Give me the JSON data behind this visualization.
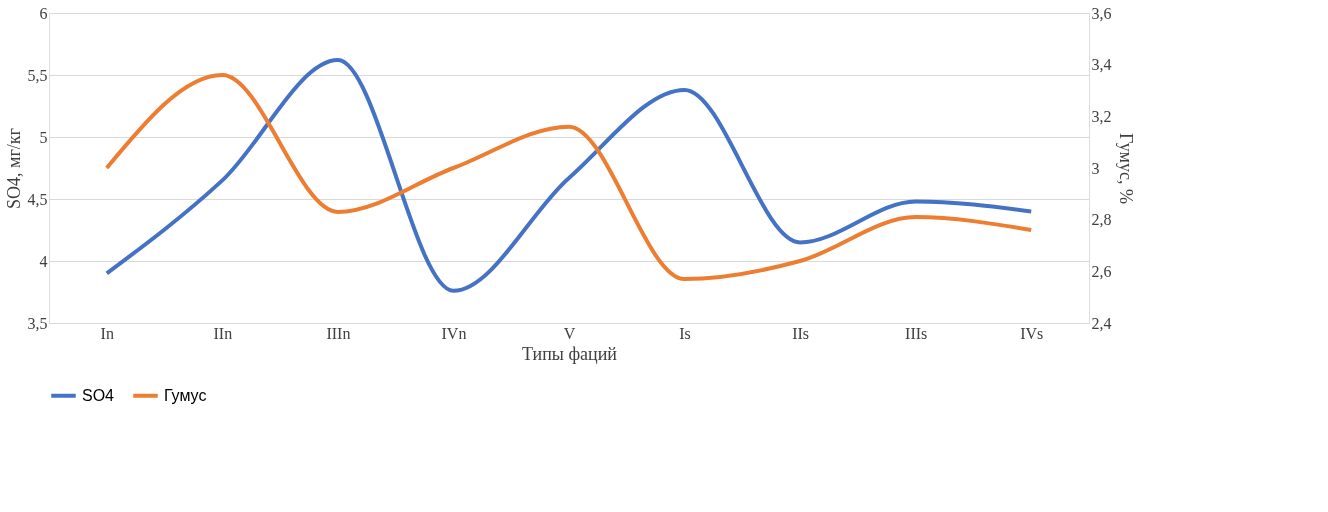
{
  "chart_data": {
    "type": "line",
    "xlabel": "Типы фаций",
    "ylabel": "SO4, мг/кг",
    "y2label": "Гумус, %",
    "categories": [
      "In",
      "IIn",
      "IIIn",
      "IVn",
      "V",
      "Is",
      "IIs",
      "IIIs",
      "IVs"
    ],
    "series": [
      {
        "name": "SO4",
        "color": "#4472c4",
        "values": [
          3.9,
          4.65,
          5.62,
          3.76,
          4.67,
          5.38,
          4.15,
          4.48,
          4.4
        ]
      },
      {
        "name": "Гумус",
        "color": "#ed7d31",
        "axis": "y2",
        "values": [
          3.0,
          3.36,
          2.83,
          3.0,
          3.16,
          2.57,
          2.64,
          2.81,
          2.76
        ]
      }
    ],
    "ylim": [
      3.5,
      6
    ],
    "yticks": [
      {
        "value": 3.5,
        "label": "3,5"
      },
      4,
      {
        "value": 4.5,
        "label": "4,5"
      },
      5,
      {
        "value": 5.5,
        "label": "5,5"
      },
      6
    ],
    "y2lim": [
      2.4,
      3.6
    ],
    "y2ticks": [
      {
        "value": 2.4,
        "label": "2,4"
      },
      {
        "value": 2.6,
        "label": "2,6"
      },
      {
        "value": 2.8,
        "label": "2,8"
      },
      3,
      {
        "value": 3.2,
        "label": "3,2"
      },
      {
        "value": 3.4,
        "label": "3,4"
      },
      {
        "value": 3.6,
        "label": "3,6"
      }
    ],
    "grid": "y",
    "legend": "bottom",
    "marker": "none",
    "line_style": "solid"
  }
}
